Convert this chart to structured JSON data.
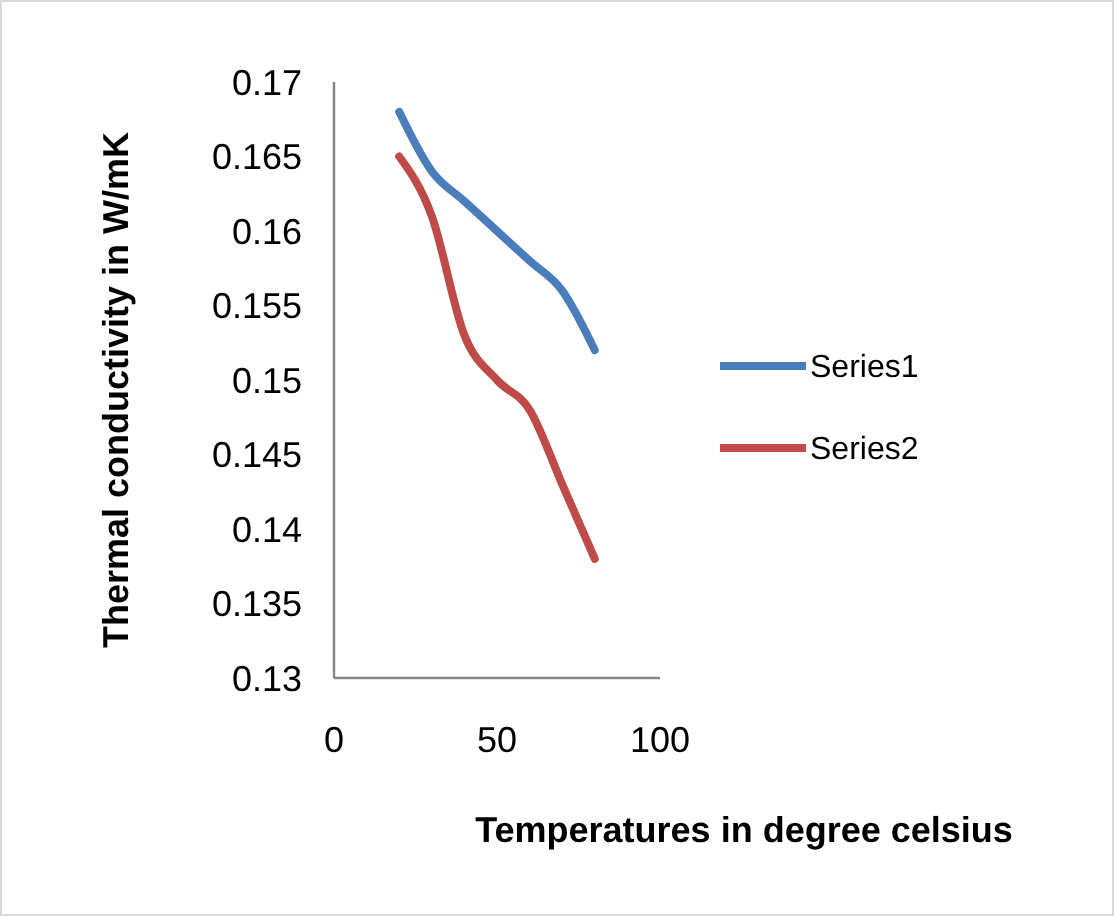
{
  "chart_data": {
    "type": "line",
    "xlabel": "Temperatures in degree celsius",
    "ylabel": "Thermal conductivity in W/mK",
    "x": [
      20,
      30,
      40,
      50,
      60,
      70,
      80
    ],
    "series": [
      {
        "name": "Series1",
        "color": "#4a7ebb",
        "values": [
          0.168,
          0.164,
          0.162,
          0.16,
          0.158,
          0.156,
          0.152
        ]
      },
      {
        "name": "Series2",
        "color": "#be4b48",
        "values": [
          0.165,
          0.161,
          0.153,
          0.15,
          0.148,
          0.143,
          0.138
        ]
      }
    ],
    "xlim": [
      0,
      100
    ],
    "xticks": [
      0,
      50,
      100
    ],
    "ylim": [
      0.13,
      0.17
    ],
    "yticks": [
      0.13,
      0.135,
      0.14,
      0.145,
      0.15,
      0.155,
      0.16,
      0.165,
      0.17
    ],
    "grid": false,
    "legend": "right",
    "marker": "none",
    "line_style": "solid"
  }
}
